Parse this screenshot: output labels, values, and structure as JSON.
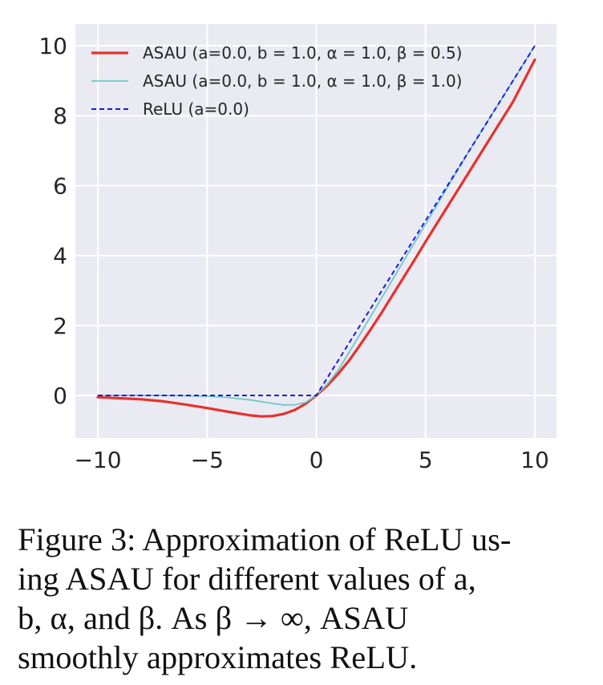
{
  "chart_data": {
    "type": "line",
    "title": "",
    "xlabel": "",
    "ylabel": "",
    "xlim": [
      -10,
      10
    ],
    "ylim": [
      -1.15,
      10.5
    ],
    "xticks": [
      -10,
      -5,
      0,
      5,
      10
    ],
    "xtick_labels": [
      "−10",
      "−5",
      "0",
      "5",
      "10"
    ],
    "yticks": [
      0,
      2,
      4,
      6,
      8,
      10
    ],
    "ytick_labels": [
      "0",
      "2",
      "4",
      "6",
      "8",
      "10"
    ],
    "grid": true,
    "legend_position": "top-left",
    "series": [
      {
        "name": "ASAU (a=0.0, b = 1.0, α = 1.0, β = 0.5)",
        "color": "#e8302c",
        "style": "solid",
        "x": [
          -10,
          -9,
          -8,
          -7,
          -6,
          -5,
          -4,
          -3,
          -2.5,
          -2,
          -1.5,
          -1,
          -0.5,
          0,
          0.5,
          1,
          1.5,
          2,
          2.5,
          3,
          3.5,
          4,
          4.5,
          5,
          6,
          7,
          8,
          9,
          10
        ],
        "y": [
          -0.05,
          -0.08,
          -0.11,
          -0.17,
          -0.26,
          -0.36,
          -0.47,
          -0.57,
          -0.6,
          -0.59,
          -0.53,
          -0.42,
          -0.24,
          0,
          0.28,
          0.62,
          1.0,
          1.44,
          1.9,
          2.38,
          2.88,
          3.38,
          3.88,
          4.4,
          5.4,
          6.4,
          7.4,
          8.4,
          9.6
        ]
      },
      {
        "name": "ASAU (a=0.0, b = 1.0, α = 1.0, β = 1.0)",
        "color": "#6fc7c7",
        "style": "solid",
        "x": [
          -10,
          -7,
          -5,
          -4,
          -3,
          -2.5,
          -2,
          -1.5,
          -1,
          -0.5,
          0,
          0.5,
          1,
          2,
          3,
          4,
          5,
          6,
          7,
          8,
          9,
          10
        ],
        "y": [
          0,
          0,
          -0.02,
          -0.06,
          -0.13,
          -0.18,
          -0.23,
          -0.27,
          -0.27,
          -0.2,
          0,
          0.32,
          0.72,
          1.75,
          2.8,
          3.85,
          4.9,
          5.95,
          7.0,
          8.0,
          9.0,
          10.0
        ]
      },
      {
        "name": "ReLU (a=0.0)",
        "color": "#1a1ae6",
        "style": "dashed",
        "x": [
          -10,
          0,
          10
        ],
        "y": [
          0,
          0,
          10
        ]
      }
    ]
  },
  "caption": {
    "lines": [
      "Figure 3: Approximation of ReLU us-",
      "ing ASAU for different values of a,",
      "b, α, and β.  As β → ∞, ASAU",
      "smoothly approximates ReLU."
    ]
  }
}
